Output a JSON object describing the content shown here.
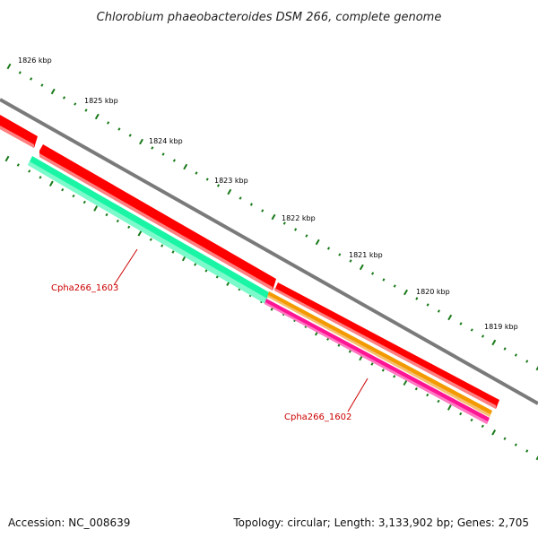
{
  "title": "Chlorobium phaeobacteroides DSM 266, complete genome",
  "colors": {
    "backbone": "#7a7a7a",
    "forward_cds": "#ff0000",
    "reverse_cds_green": "#19f5a5",
    "reverse_cds_orange": "#f39a00",
    "reverse_cds_pink": "#ff1493",
    "tick": "#1a7a1a",
    "gene_label": "#cc0000"
  },
  "scale_labels": [
    "1826 kbp",
    "1825 kbp",
    "1824 kbp",
    "1823 kbp",
    "1822 kbp",
    "1821 kbp",
    "1820 kbp",
    "1819 kbp"
  ],
  "gene_labels": [
    "Cpha266_1603",
    "Cpha266_1602"
  ],
  "footer": {
    "accession": "Accession: NC_008639",
    "summary": "Topology: circular; Length: 3,133,902 bp; Genes: 2,705"
  }
}
